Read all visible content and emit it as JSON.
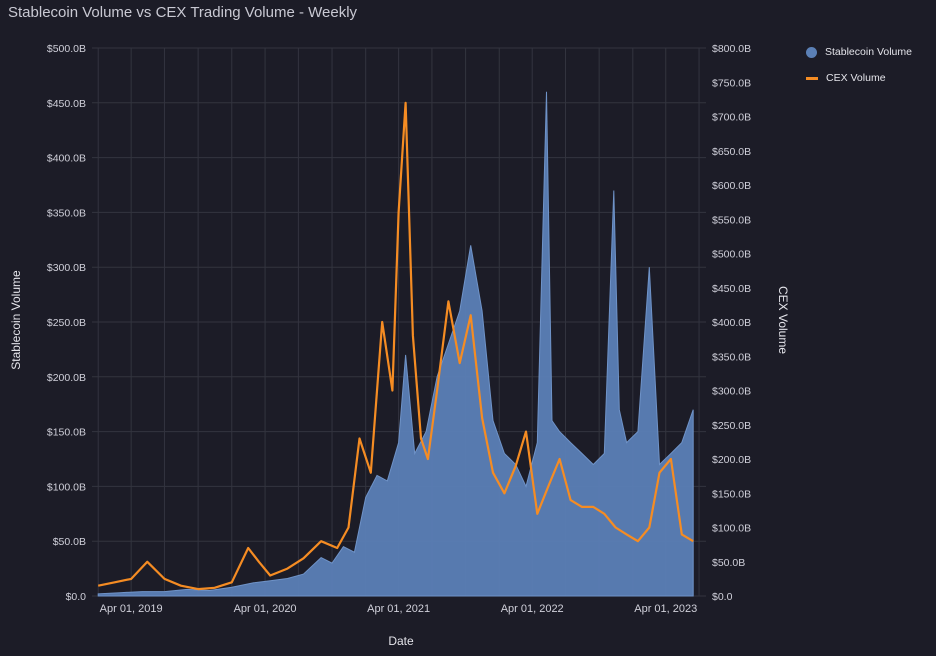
{
  "title": "Stablecoin Volume vs CEX Trading Volume - Weekly",
  "colors": {
    "background": "#1c1c27",
    "grid": "#33343f",
    "stablecoin": "#5b80b6",
    "cex": "#f58c23",
    "text": "#d8d8e0"
  },
  "chart_data": {
    "type": "area",
    "title": "Stablecoin Volume vs CEX Trading Volume - Weekly",
    "xlabel": "Date",
    "ylabel_left": "Stablecoin Volume",
    "ylabel_right": "CEX Volume",
    "x_ticks": [
      "Apr 01, 2019",
      "Apr 01, 2020",
      "Apr 01, 2021",
      "Apr 01, 2022",
      "Apr 01, 2023"
    ],
    "y_left_ticks": [
      "$0.0",
      "$50.0B",
      "$100.0B",
      "$150.0B",
      "$200.0B",
      "$250.0B",
      "$300.0B",
      "$350.0B",
      "$400.0B",
      "$450.0B",
      "$500.0B"
    ],
    "y_right_ticks": [
      "$0.0",
      "$50.0B",
      "$100.0B",
      "$150.0B",
      "$200.0B",
      "$250.0B",
      "$300.0B",
      "$350.0B",
      "$400.0B",
      "$450.0B",
      "$500.0B",
      "$550.0B",
      "$600.0B",
      "$650.0B",
      "$700.0B",
      "$750.0B",
      "$800.0B"
    ],
    "ylim_left": [
      0,
      500
    ],
    "ylim_right": [
      0,
      800
    ],
    "units": "billions USD",
    "grid": true,
    "legend_position": "top-right",
    "series": [
      {
        "name": "Stablecoin Volume",
        "axis": "left",
        "style": "area",
        "x": [
          "2019-01-01",
          "2019-03-01",
          "2019-05-01",
          "2019-07-01",
          "2019-09-01",
          "2019-11-01",
          "2020-01-01",
          "2020-03-01",
          "2020-04-15",
          "2020-06-01",
          "2020-07-15",
          "2020-09-01",
          "2020-10-01",
          "2020-11-01",
          "2020-12-01",
          "2021-01-01",
          "2021-02-01",
          "2021-03-01",
          "2021-04-01",
          "2021-04-20",
          "2021-05-15",
          "2021-06-15",
          "2021-07-15",
          "2021-08-15",
          "2021-09-15",
          "2021-10-15",
          "2021-11-15",
          "2021-12-15",
          "2022-01-15",
          "2022-02-15",
          "2022-03-15",
          "2022-04-15",
          "2022-05-10",
          "2022-05-25",
          "2022-06-15",
          "2022-07-15",
          "2022-08-15",
          "2022-09-15",
          "2022-10-15",
          "2022-11-10",
          "2022-11-25",
          "2022-12-15",
          "2023-01-15",
          "2023-02-15",
          "2023-03-15",
          "2023-04-15",
          "2023-05-15",
          "2023-06-15"
        ],
        "values": [
          2,
          3,
          4,
          4,
          6,
          5,
          8,
          12,
          14,
          16,
          20,
          35,
          30,
          45,
          40,
          90,
          110,
          105,
          140,
          220,
          130,
          150,
          200,
          230,
          260,
          320,
          260,
          160,
          130,
          120,
          100,
          140,
          460,
          160,
          150,
          140,
          130,
          120,
          130,
          370,
          170,
          140,
          150,
          300,
          120,
          130,
          140,
          170
        ]
      },
      {
        "name": "CEX Volume",
        "axis": "right",
        "style": "line",
        "x": [
          "2019-01-01",
          "2019-02-15",
          "2019-04-01",
          "2019-05-15",
          "2019-07-01",
          "2019-08-15",
          "2019-10-01",
          "2019-11-15",
          "2020-01-01",
          "2020-02-15",
          "2020-03-15",
          "2020-04-15",
          "2020-06-01",
          "2020-07-15",
          "2020-09-01",
          "2020-10-15",
          "2020-11-15",
          "2020-12-15",
          "2021-01-15",
          "2021-02-15",
          "2021-03-15",
          "2021-04-01",
          "2021-04-20",
          "2021-05-10",
          "2021-06-01",
          "2021-06-20",
          "2021-07-15",
          "2021-08-15",
          "2021-09-15",
          "2021-10-15",
          "2021-11-15",
          "2021-12-15",
          "2022-01-15",
          "2022-02-15",
          "2022-03-15",
          "2022-04-15",
          "2022-05-15",
          "2022-06-15",
          "2022-07-15",
          "2022-08-15",
          "2022-09-15",
          "2022-10-15",
          "2022-11-15",
          "2022-12-15",
          "2023-01-15",
          "2023-02-15",
          "2023-03-15",
          "2023-04-15",
          "2023-05-15",
          "2023-06-15"
        ],
        "values": [
          15,
          20,
          25,
          50,
          25,
          15,
          10,
          12,
          20,
          70,
          50,
          30,
          40,
          55,
          80,
          70,
          100,
          230,
          180,
          400,
          300,
          560,
          720,
          380,
          230,
          200,
          300,
          430,
          340,
          410,
          260,
          180,
          150,
          190,
          240,
          120,
          160,
          200,
          140,
          130,
          130,
          120,
          100,
          90,
          80,
          100,
          180,
          200,
          90,
          80
        ]
      }
    ]
  }
}
